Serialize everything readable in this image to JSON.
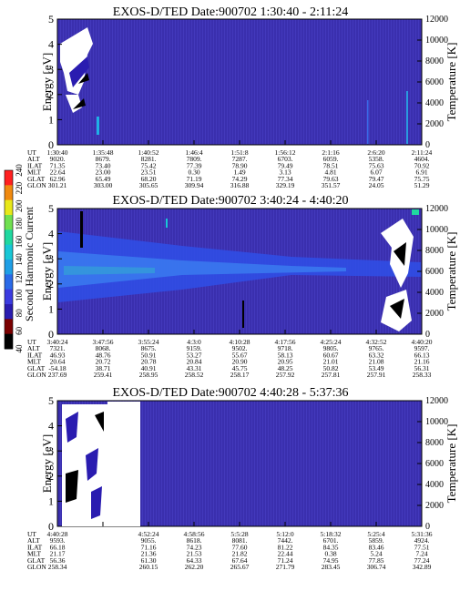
{
  "chart_data": [
    {
      "type": "heatmap",
      "title": "EXOS-D/TED  Date:900702  1:30:40 - 2:11:24",
      "ylabel": "Energy [eV]",
      "y2label": "Temperature [K]",
      "ylim": [
        0,
        5
      ],
      "y2lim": [
        0,
        12000
      ],
      "yticks": [
        "0",
        "1",
        "2",
        "3",
        "4",
        "5"
      ],
      "y2ticks": [
        "0",
        "2000",
        "4000",
        "6000",
        "8000",
        "10000",
        "12000"
      ],
      "row_labels": [
        "UT",
        "ALT",
        "ILAT",
        "MLT",
        "GLAT",
        "GLON"
      ],
      "columns": [
        [
          "1:30:40",
          "9020.",
          "71.35",
          "22.64",
          "62.96",
          "301.21"
        ],
        [
          "1:35:48",
          "8679.",
          "73.40",
          "23.00",
          "65.49",
          "303.00"
        ],
        [
          "1:40:52",
          "8281.",
          "75.42",
          "23.51",
          "68.20",
          "305.65"
        ],
        [
          "1:46:4",
          "7809.",
          "77.39",
          "0.30",
          "71.19",
          "309.94"
        ],
        [
          "1:51:8",
          "7287.",
          "78.90",
          "1.49",
          "74.29",
          "316.88"
        ],
        [
          "1:56:12",
          "6703.",
          "79.49",
          "3.13",
          "77.34",
          "329.19"
        ],
        [
          "2:1:16",
          "6059.",
          "78.51",
          "4.81",
          "79.63",
          "351.57"
        ],
        [
          "2:6:20",
          "5358.",
          "75.63",
          "6.07",
          "79.47",
          "24.05"
        ],
        [
          "2:11:24",
          "4604.",
          "70.92",
          "6.91",
          "75.75",
          "51.29"
        ]
      ],
      "gap_start": null,
      "gap_end": null
    },
    {
      "type": "heatmap",
      "title": "EXOS-D/TED  Date:900702  3:40:24 - 4:40:20",
      "ylabel": "Energy [eV]",
      "y2label": "Temperature [K]",
      "ylim": [
        0,
        5
      ],
      "y2lim": [
        0,
        12000
      ],
      "yticks": [
        "0",
        "1",
        "2",
        "3",
        "4",
        "5"
      ],
      "y2ticks": [
        "0",
        "2000",
        "4000",
        "6000",
        "8000",
        "10000",
        "12000"
      ],
      "row_labels": [
        "UT",
        "ALT",
        "ILAT",
        "MLT",
        "GLAT",
        "GLON"
      ],
      "columns": [
        [
          "3:40:24",
          "7321.",
          "46.93",
          "20.64",
          "-54.18",
          "237.69"
        ],
        [
          "3:47:56",
          "8068.",
          "48.76",
          "20.72",
          "38.71",
          "259.41"
        ],
        [
          "3:55:24",
          "8675.",
          "50.91",
          "20.78",
          "40.91",
          "258.95"
        ],
        [
          "4:3:0",
          "9159.",
          "53.27",
          "20.84",
          "43.31",
          "258.52"
        ],
        [
          "4:10:28",
          "9502.",
          "55.67",
          "20.90",
          "45.75",
          "258.17"
        ],
        [
          "4:17:56",
          "9718.",
          "58.13",
          "20.95",
          "48.25",
          "257.92"
        ],
        [
          "4:25:24",
          "9805.",
          "60.67",
          "21.01",
          "50.82",
          "257.81"
        ],
        [
          "4:32:52",
          "9765.",
          "63.32",
          "21.08",
          "53.49",
          "257.91"
        ],
        [
          "4:40:20",
          "9597.",
          "66.13",
          "21.16",
          "56.31",
          "258.33"
        ]
      ],
      "gap_start": null,
      "gap_end": null
    },
    {
      "type": "heatmap",
      "title": "EXOS-D/TED  Date:900702  4:40:28 - 5:37:36",
      "ylabel": "Energy [eV]",
      "y2label": "Temperature [K]",
      "ylim": [
        0,
        5
      ],
      "y2lim": [
        0,
        12000
      ],
      "yticks": [
        "0",
        "1",
        "2",
        "3",
        "4",
        "5"
      ],
      "y2ticks": [
        "0",
        "2000",
        "4000",
        "6000",
        "8000",
        "10000",
        "12000"
      ],
      "row_labels": [
        "UT",
        "ALT",
        "ILAT",
        "MLT",
        "GLAT",
        "GLON"
      ],
      "columns": [
        [
          "4:40:28",
          "9593.",
          "66.18",
          "21.17",
          "56.36",
          "258.34"
        ],
        null,
        [
          "4:52:24",
          "9055.",
          "71.16",
          "21.36",
          "61.30",
          "260.15"
        ],
        [
          "4:58:56",
          "8618.",
          "74.23",
          "21.53",
          "64.33",
          "262.20"
        ],
        [
          "5:5:28",
          "8081.",
          "77.60",
          "21.82",
          "67.64",
          "265.67"
        ],
        [
          "5:12:0",
          "7442.",
          "81.22",
          "22.44",
          "71.24",
          "271.79"
        ],
        [
          "5:18:32",
          "6701.",
          "84.35",
          "0.38",
          "74.95",
          "283.45"
        ],
        [
          "5:25:4",
          "5859.",
          "83.46",
          "5.24",
          "77.85",
          "306.74"
        ],
        [
          "5:31:36",
          "4924.",
          "77.51",
          "7.24",
          "77.24",
          "342.89"
        ]
      ],
      "gap_start": "4:40:28",
      "gap_end": "4:52:24"
    }
  ],
  "colorbar": {
    "label": "Second Harmonic Current",
    "ticks": [
      "40",
      "60",
      "80",
      "100",
      "120",
      "140",
      "160",
      "180",
      "200",
      "220",
      "240"
    ],
    "colors": [
      "#000000",
      "#7a0000",
      "#2a1cb0",
      "#3b3be0",
      "#2a6ae8",
      "#1f9fe6",
      "#19c7d6",
      "#20d8a0",
      "#70e050",
      "#e8e81a",
      "#f08a10",
      "#ff2020"
    ]
  },
  "colors": {
    "background": "#3a2fae",
    "band": "#2f4fe8",
    "white_gap": "#ffffff"
  }
}
